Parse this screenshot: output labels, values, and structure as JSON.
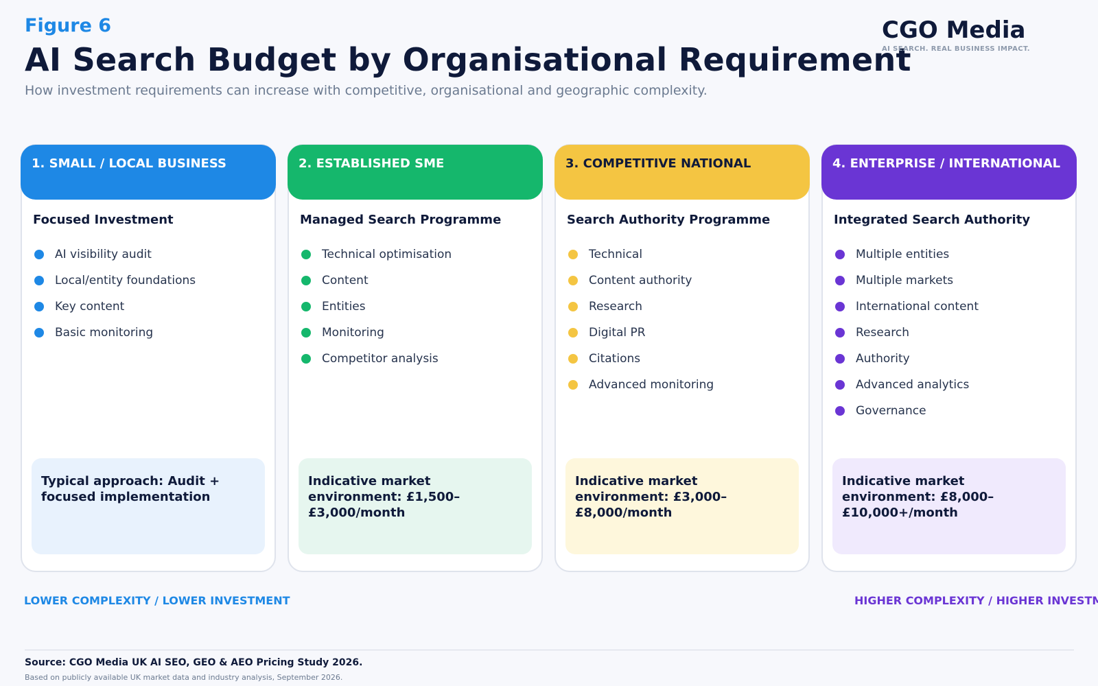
{
  "header": {
    "figure_label": "Figure 6",
    "title": "AI Search Budget by Organisational Requirement",
    "subtitle": "How investment requirements can increase with competitive, organisational and geographic complexity."
  },
  "brand": {
    "name": "CGO Media",
    "tagline": "AI SEARCH. REAL BUSINESS IMPACT."
  },
  "colors": {
    "blue": "#1e88e5",
    "green": "#15b76c",
    "yellow": "#f4c542",
    "purple": "#6a35d4"
  },
  "tiers": [
    {
      "heading": "1. SMALL / LOCAL BUSINESS",
      "subheading": "Focused Investment",
      "items": [
        "AI visibility audit",
        "Local/entity foundations",
        "Key content",
        "Basic monitoring"
      ],
      "note": "Typical approach: Audit + focused implementation",
      "color": "#1e88e5",
      "head_text_color": "#ffffff",
      "note_bg": "#e8f2fd"
    },
    {
      "heading": "2. ESTABLISHED SME",
      "subheading": "Managed Search Programme",
      "items": [
        "Technical optimisation",
        "Content",
        "Entities",
        "Monitoring",
        "Competitor analysis"
      ],
      "note": "Indicative market environment: £1,500–£3,000/month",
      "color": "#15b76c",
      "head_text_color": "#ffffff",
      "note_bg": "#e6f6ef"
    },
    {
      "heading": "3. COMPETITIVE NATIONAL",
      "subheading": "Search Authority Programme",
      "items": [
        "Technical",
        "Content authority",
        "Research",
        "Digital PR",
        "Citations",
        "Advanced monitoring"
      ],
      "note": "Indicative market environment: £3,000–£8,000/month",
      "color": "#f4c542",
      "head_text_color": "#0f1a3a",
      "note_bg": "#fef7dc"
    },
    {
      "heading": "4. ENTERPRISE / INTERNATIONAL",
      "subheading": "Integrated Search Authority",
      "items": [
        "Multiple entities",
        "Multiple markets",
        "International content",
        "Research",
        "Authority",
        "Advanced analytics",
        "Governance"
      ],
      "note": "Indicative market environment: £8,000–£10,000+/month",
      "color": "#6a35d4",
      "head_text_color": "#ffffff",
      "note_bg": "#f0eafd"
    }
  ],
  "scale": {
    "left": "LOWER COMPLEXITY / LOWER INVESTMENT",
    "right": "HIGHER COMPLEXITY / HIGHER INVESTMENT"
  },
  "footer": {
    "source": "Source: CGO Media UK AI SEO, GEO & AEO Pricing Study 2026.",
    "note": "Based on publicly available UK market data and industry analysis, September 2026."
  }
}
